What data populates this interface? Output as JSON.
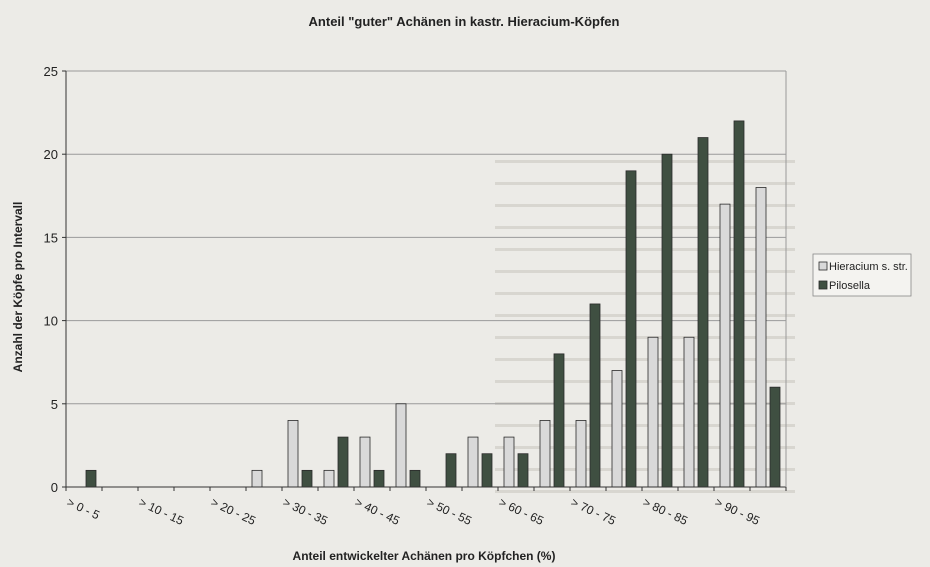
{
  "chart_data": {
    "type": "bar",
    "title": "Anteil \"guter\" Achänen in kastr. Hieracium-Köpfen",
    "xlabel": "Anteil entwickelter Achänen pro Köpfchen (%)",
    "ylabel": "Anzahl der Köpfe pro Intervall",
    "ylim": [
      0,
      25
    ],
    "yticks": [
      0,
      5,
      10,
      15,
      20,
      25
    ],
    "grid": true,
    "legend_position": "right",
    "categories": [
      "> 0 - 5",
      "",
      "> 10 - 15",
      "",
      "> 20 - 25",
      "",
      "> 30 - 35",
      "",
      "> 40 - 45",
      "",
      "> 50 - 55",
      "",
      "> 60 - 65",
      "",
      "> 70 - 75",
      "",
      "> 80 - 85",
      "",
      "> 90 - 95",
      ""
    ],
    "series": [
      {
        "name": "Hieracium s. str.",
        "color": "#d9d9d9",
        "values": [
          0,
          0,
          0,
          0,
          0,
          1,
          4,
          1,
          3,
          5,
          0,
          3,
          3,
          4,
          4,
          7,
          9,
          9,
          17,
          18
        ]
      },
      {
        "name": "Pilosella",
        "color": "#3f4f41",
        "values": [
          1,
          0,
          0,
          0,
          0,
          0,
          1,
          3,
          1,
          1,
          2,
          2,
          2,
          8,
          11,
          19,
          20,
          21,
          22,
          6
        ]
      }
    ]
  }
}
